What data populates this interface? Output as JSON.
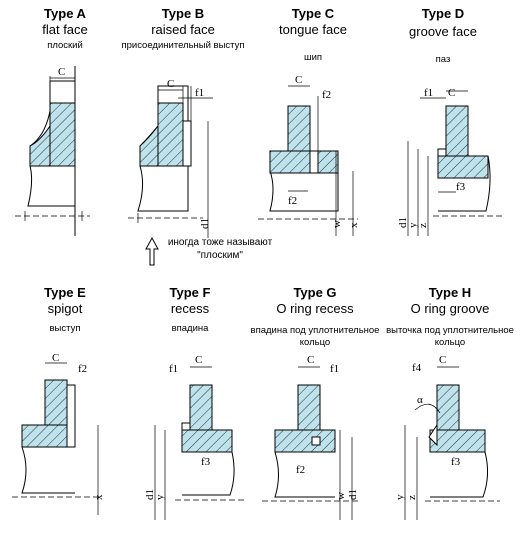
{
  "flanges": [
    {
      "id": "A",
      "title": "Type A",
      "subtitle": "flat face",
      "russian": "плоский",
      "dims": [
        "C"
      ]
    },
    {
      "id": "B",
      "title": "Type B",
      "subtitle": "raised face",
      "russian": "присоединительный выступ",
      "dims": [
        "C",
        "f1",
        "d1"
      ]
    },
    {
      "id": "C",
      "title": "Type C",
      "subtitle": "tongue face",
      "russian": "шип",
      "dims": [
        "C",
        "f2",
        "f2",
        "w",
        "x"
      ]
    },
    {
      "id": "D",
      "title": "Type D",
      "subtitle": "groove face",
      "russian": "паз",
      "dims": [
        "f1",
        "C",
        "f3",
        "d1",
        "y",
        "z"
      ]
    },
    {
      "id": "E",
      "title": "Type E",
      "subtitle": "spigot",
      "russian": "выступ",
      "dims": [
        "C",
        "f2",
        "x"
      ]
    },
    {
      "id": "F",
      "title": "Type F",
      "subtitle": "recess",
      "russian": "впадина",
      "dims": [
        "f1",
        "C",
        "f3",
        "d1",
        "y"
      ]
    },
    {
      "id": "G",
      "title": "Type G",
      "subtitle": "O ring recess",
      "russian": "впадина под уплотнительное кольцо",
      "dims": [
        "C",
        "f1",
        "f2",
        "w",
        "d1"
      ]
    },
    {
      "id": "H",
      "title": "Type H",
      "subtitle": "O ring groove",
      "russian": "выточка под уплотнительное кольцо",
      "dims": [
        "f4",
        "C",
        "α",
        "f3",
        "y",
        "z"
      ]
    }
  ],
  "note": {
    "line1": "иногда тоже называют",
    "line2": "\"плоским\""
  },
  "colors": {
    "hatch_fill": "#bfe3ec",
    "line": "#000000"
  }
}
